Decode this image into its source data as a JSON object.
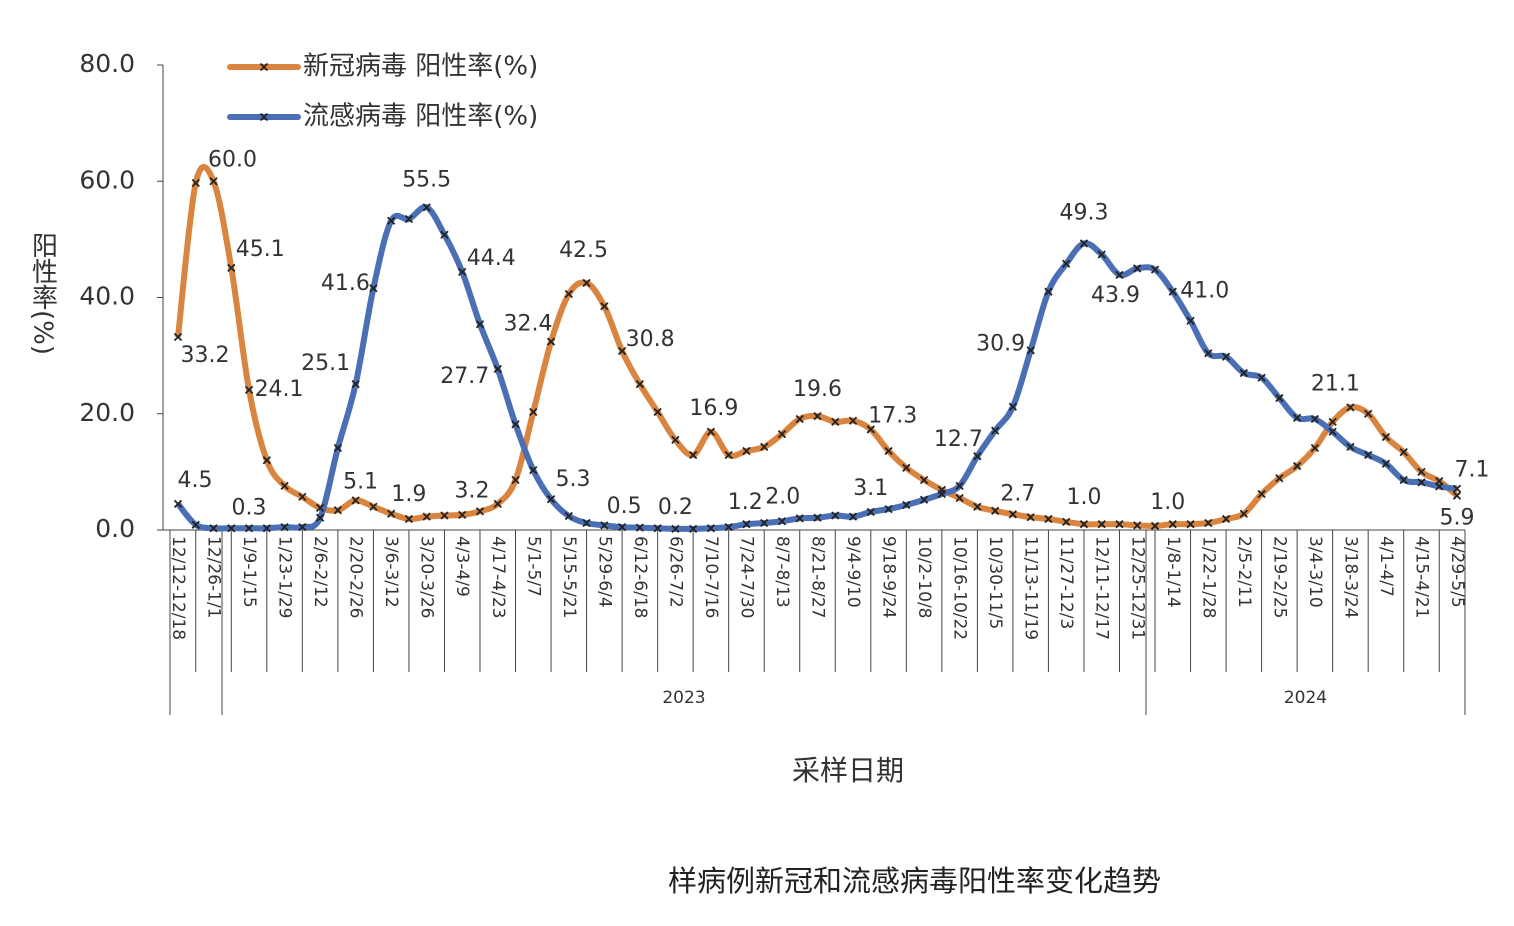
{
  "chart_data": {
    "type": "line",
    "y_label": "阳性率(%)",
    "x_label": "采样日期",
    "caption": "样病例新冠和流感病毒阳性率变化趋势",
    "ylim": [
      0,
      80
    ],
    "yticks": [
      {
        "value": 0,
        "label": "0.0"
      },
      {
        "value": 20,
        "label": "20.0"
      },
      {
        "value": 40,
        "label": "40.0"
      },
      {
        "value": 60,
        "label": "60.0"
      },
      {
        "value": 80,
        "label": "80.0"
      }
    ],
    "x_groups": [
      "2023",
      "2024"
    ],
    "legend": "top-left",
    "categories": [
      "12/12-12/18",
      null,
      "12/26-1/1",
      null,
      "1/9-1/15",
      null,
      "1/23-1/29",
      null,
      "2/6-2/12",
      null,
      "2/20-2/26",
      null,
      "3/6-3/12",
      null,
      "3/20-3/26",
      null,
      "4/3-4/9",
      null,
      "4/17-4/23",
      null,
      "5/1-5/7",
      null,
      "5/15-5/21",
      null,
      "5/29-6/4",
      null,
      "6/12-6/18",
      null,
      "6/26-7/2",
      null,
      "7/10-7/16",
      null,
      "7/24-7/30",
      null,
      "8/7-8/13",
      null,
      "8/21-8/27",
      null,
      "9/4-9/10",
      null,
      "9/18-9/24",
      null,
      "10/2-10/8",
      null,
      "10/16-10/22",
      null,
      "10/30-11/5",
      null,
      "11/13-11/19",
      null,
      "11/27-12/3",
      null,
      "12/11-12/17",
      null,
      "12/25-12/31",
      null,
      "1/8-1/14",
      null,
      "1/22-1/28",
      null,
      "2/5-2/11",
      null,
      "2/19-2/25",
      null,
      "3/4-3/10",
      null,
      "3/18-3/24",
      null,
      "4/1-4/7",
      null,
      "4/15-4/21",
      null,
      "4/29-5/5"
    ],
    "series": [
      {
        "name": "新冠病毒 阳性率(%)",
        "color": "#d9843f",
        "values": [
          33.2,
          59.7,
          60.0,
          45.1,
          24.1,
          12.0,
          7.6,
          5.7,
          3.8,
          3.4,
          5.1,
          4.0,
          2.8,
          1.9,
          2.3,
          2.5,
          2.6,
          3.2,
          4.5,
          8.6,
          20.3,
          32.4,
          40.6,
          42.5,
          38.5,
          30.8,
          25.1,
          20.3,
          15.5,
          12.9,
          16.9,
          12.9,
          13.6,
          14.3,
          16.5,
          19.1,
          19.6,
          18.6,
          18.8,
          17.3,
          13.6,
          10.7,
          8.6,
          6.9,
          5.5,
          4.0,
          3.3,
          2.7,
          2.2,
          1.9,
          1.4,
          1.0,
          1.0,
          1.0,
          0.8,
          0.7,
          1.0,
          1.0,
          1.2,
          1.9,
          2.8,
          6.2,
          8.9,
          11.0,
          14.1,
          18.6,
          21.1,
          20.0,
          16.0,
          13.4,
          10.0,
          8.4,
          5.9
        ],
        "value_labels": [
          "33.2",
          null,
          "60.0",
          "45.1",
          "24.1",
          null,
          null,
          null,
          null,
          null,
          "5.1",
          null,
          null,
          "1.9",
          null,
          null,
          null,
          "3.2",
          null,
          null,
          null,
          "32.4",
          null,
          "42.5",
          null,
          "30.8",
          null,
          null,
          null,
          null,
          "16.9",
          null,
          null,
          null,
          null,
          null,
          "19.6",
          null,
          null,
          "17.3",
          null,
          null,
          null,
          null,
          null,
          null,
          null,
          "2.7",
          null,
          null,
          null,
          "1.0",
          null,
          null,
          null,
          null,
          "1.0",
          null,
          null,
          null,
          null,
          null,
          null,
          null,
          null,
          null,
          "21.1",
          null,
          null,
          null,
          null,
          null,
          "5.9"
        ]
      },
      {
        "name": "流感病毒 阳性率(%)",
        "color": "#4a6fb5",
        "values": [
          4.5,
          0.9,
          0.3,
          0.3,
          0.3,
          0.3,
          0.5,
          0.5,
          2.1,
          14.1,
          25.1,
          41.6,
          53.2,
          53.5,
          55.5,
          50.8,
          44.4,
          35.4,
          27.7,
          18.2,
          10.3,
          5.3,
          2.4,
          1.2,
          0.8,
          0.5,
          0.4,
          0.3,
          0.2,
          0.2,
          0.3,
          0.5,
          1.0,
          1.2,
          1.5,
          2.0,
          2.1,
          2.5,
          2.3,
          3.1,
          3.6,
          4.3,
          5.2,
          6.2,
          7.6,
          12.7,
          17.1,
          21.2,
          30.9,
          41.0,
          45.8,
          49.3,
          47.4,
          43.9,
          45.0,
          44.8,
          41.0,
          36.0,
          30.4,
          29.8,
          27.0,
          26.2,
          22.7,
          19.3,
          19.1,
          16.9,
          14.3,
          12.9,
          11.4,
          8.6,
          8.2,
          7.5,
          7.1
        ],
        "value_labels": [
          "4.5",
          null,
          null,
          null,
          "0.3",
          null,
          null,
          null,
          null,
          null,
          "25.1",
          "41.6",
          null,
          null,
          "55.5",
          null,
          "44.4",
          null,
          "27.7",
          null,
          null,
          "5.3",
          null,
          null,
          null,
          "0.5",
          null,
          null,
          "0.2",
          null,
          null,
          null,
          null,
          "1.2",
          null,
          "2.0",
          null,
          null,
          null,
          "3.1",
          null,
          null,
          null,
          null,
          null,
          "12.7",
          null,
          null,
          "30.9",
          null,
          null,
          "49.3",
          null,
          "43.9",
          null,
          null,
          "41.0",
          null,
          null,
          null,
          null,
          null,
          null,
          null,
          null,
          null,
          null,
          null,
          null,
          null,
          null,
          null,
          "7.1"
        ]
      }
    ]
  }
}
